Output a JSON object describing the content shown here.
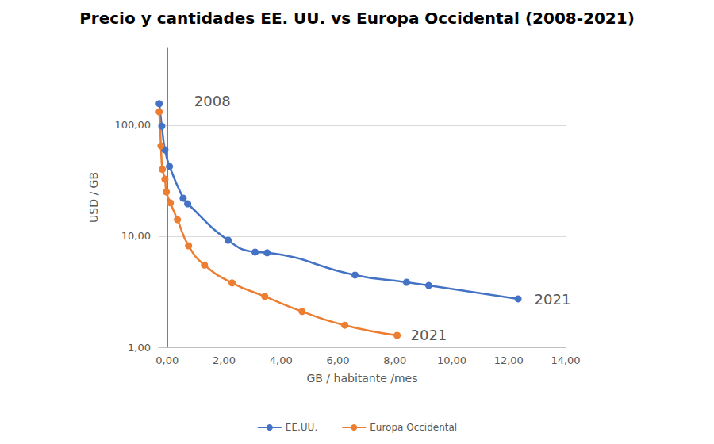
{
  "chart_data": {
    "type": "line",
    "title": "Precio y cantidades EE. UU. vs Europa Occidental (2008-2021)",
    "x_label": "GB / habitante /mes",
    "y_label": "USD / GB",
    "log": "y",
    "grid": true,
    "legend": "bottom",
    "marker": "circle",
    "line_style": "smooth",
    "xlim": [
      -0.3,
      14
    ],
    "xticks": [
      {
        "value": 0,
        "label": "0,00"
      },
      {
        "value": 2,
        "label": "2,00"
      },
      {
        "value": 4,
        "label": "4,00"
      },
      {
        "value": 6,
        "label": "6,00"
      },
      {
        "value": 8,
        "label": "8,00"
      },
      {
        "value": 10,
        "label": "10,00"
      },
      {
        "value": 12,
        "label": "12,00"
      },
      {
        "value": 14,
        "label": "14,00"
      }
    ],
    "ylim": [
      1,
      500
    ],
    "yticks": [
      {
        "value": 1,
        "label": "1,00"
      },
      {
        "value": 10,
        "label": "10,00"
      },
      {
        "value": 100,
        "label": "100,00"
      }
    ],
    "series": [
      {
        "name": "EE.UU.",
        "color": "#4472c4",
        "x": [
          -0.28,
          -0.19,
          -0.08,
          0.08,
          0.56,
          0.72,
          2.14,
          3.09,
          3.51,
          6.6,
          8.41,
          9.19,
          12.33
        ],
        "values": [
          156,
          98,
          60,
          42.5,
          22,
          19.6,
          9.2,
          7.2,
          7.1,
          4.47,
          3.85,
          3.6,
          2.73
        ]
      },
      {
        "name": "Europa Occidental",
        "color": "#ed7d31",
        "x": [
          -0.28,
          -0.22,
          -0.17,
          -0.08,
          -0.03,
          0.11,
          0.36,
          0.75,
          1.31,
          2.28,
          3.43,
          4.74,
          6.24,
          8.08
        ],
        "values": [
          132,
          65,
          40,
          32.7,
          25,
          20,
          14.1,
          8.2,
          5.5,
          3.8,
          2.87,
          2.1,
          1.58,
          1.28
        ]
      }
    ],
    "annotations": [
      {
        "text": "2008",
        "x": 0.95,
        "y": 164
      },
      {
        "text": "2021",
        "x": 12.9,
        "y": 2.7
      },
      {
        "text": "2021",
        "x": 8.55,
        "y": 1.28
      }
    ]
  }
}
